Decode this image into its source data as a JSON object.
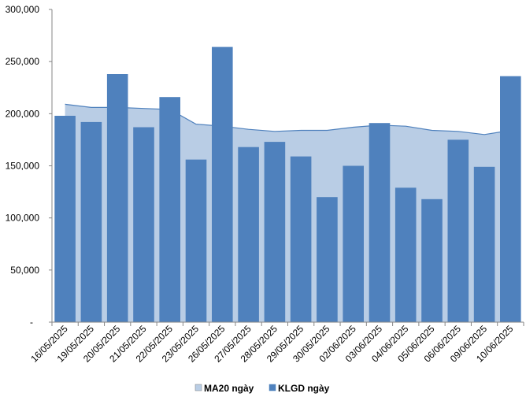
{
  "chart_data": {
    "type": "bar",
    "categories": [
      "16/05/2025",
      "19/05/2025",
      "20/05/2025",
      "21/05/2025",
      "22/05/2025",
      "23/05/2025",
      "26/05/2025",
      "27/05/2025",
      "28/05/2025",
      "29/05/2025",
      "30/05/2025",
      "02/06/2025",
      "03/06/2025",
      "04/06/2025",
      "05/06/2025",
      "06/06/2025",
      "09/06/2025",
      "10/06/2025"
    ],
    "series": [
      {
        "name": "MA20 ngày",
        "type": "area",
        "color": "#b9cde5",
        "line_color": "#4f81bd",
        "values": [
          209000,
          206000,
          206000,
          205000,
          204000,
          190000,
          188000,
          185000,
          183000,
          184000,
          184000,
          187000,
          189000,
          188000,
          184000,
          183000,
          180000,
          184000
        ]
      },
      {
        "name": "KLGD ngày",
        "type": "bar",
        "color": "#4f81bd",
        "values": [
          198000,
          192000,
          238000,
          187000,
          216000,
          156000,
          264000,
          168000,
          173000,
          159000,
          120000,
          150000,
          191000,
          129000,
          118000,
          175000,
          149000,
          236000
        ]
      }
    ],
    "y_ticks": [
      "-",
      "50,000",
      "100,000",
      "150,000",
      "200,000",
      "250,000",
      "300,000"
    ],
    "ylim": [
      0,
      300000
    ],
    "grid": false,
    "legend_position": "bottom"
  }
}
